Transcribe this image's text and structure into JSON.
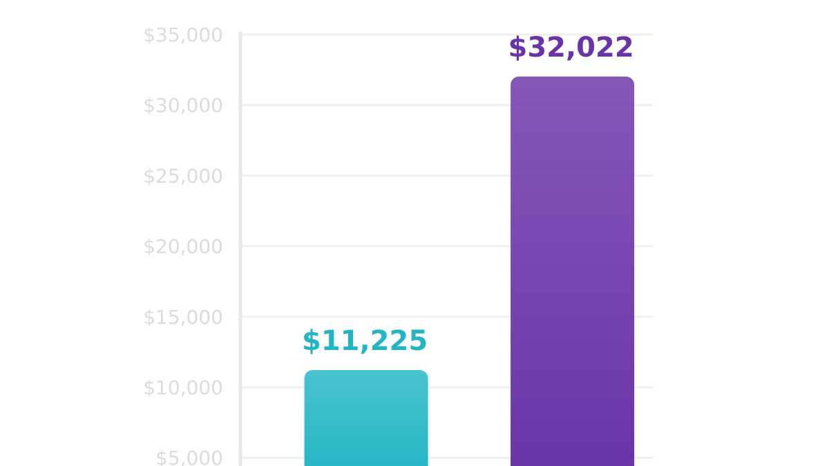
{
  "chart_data": {
    "type": "bar",
    "categories": [
      null,
      null
    ],
    "values": [
      11225,
      32022
    ],
    "value_labels": [
      "$11,225",
      "$32,022"
    ],
    "colors": [
      "#22b6c4",
      "#6a33a8"
    ],
    "ylim": [
      0,
      35000
    ],
    "yticks": [
      {
        "value": 5000,
        "label": "$5,000"
      },
      {
        "value": 10000,
        "label": "$10,000"
      },
      {
        "value": 15000,
        "label": "$15,000"
      },
      {
        "value": 20000,
        "label": "$20,000"
      },
      {
        "value": 25000,
        "label": "$25,000"
      },
      {
        "value": 30000,
        "label": "$30,000"
      },
      {
        "value": 35000,
        "label": "$35,000"
      }
    ],
    "grid": true
  }
}
